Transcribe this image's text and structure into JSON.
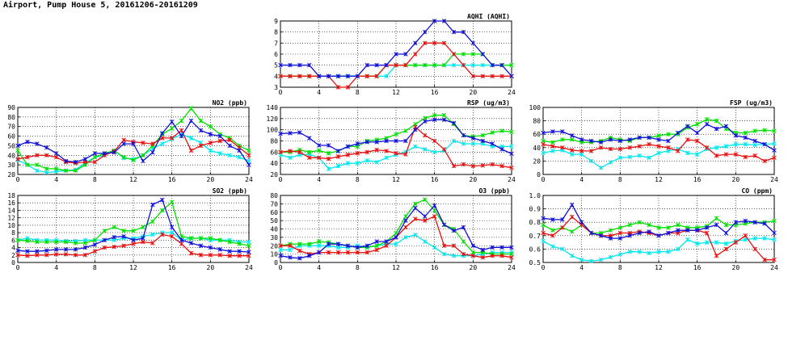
{
  "page_title": "Airport, Pump House 5, 20161206-20161209",
  "series_colors": {
    "series_1": "#00e8f0",
    "series_2": "#00e000",
    "series_3": "#e81010",
    "series_4": "#1010d8"
  },
  "chart_data": [
    {
      "id": "aqhi",
      "type": "line",
      "title": "AQHI (AQHI)",
      "xlim": [
        0,
        24
      ],
      "ylim": [
        3,
        9
      ],
      "xticks": [
        "0",
        "4",
        "8",
        "12",
        "16",
        "20",
        "24"
      ],
      "yticks": [
        "3",
        "4",
        "5",
        "6",
        "7",
        "8",
        "9"
      ],
      "grid": true,
      "series": [
        {
          "color": "#00e8f0",
          "values": [
            4,
            4,
            4,
            4,
            4,
            4,
            4,
            4,
            4,
            4,
            4,
            4,
            5,
            5,
            5,
            5,
            5,
            5,
            5,
            5,
            5,
            5,
            5,
            5,
            5
          ]
        },
        {
          "color": "#00e000",
          "values": [
            4,
            4,
            4,
            4,
            4,
            4,
            4,
            4,
            4,
            4,
            4,
            5,
            5,
            5,
            5,
            5,
            5,
            5,
            6,
            6,
            6,
            6,
            5,
            5,
            5
          ]
        },
        {
          "color": "#e81010",
          "values": [
            4,
            4,
            4,
            4,
            4,
            4,
            3,
            3,
            4,
            4,
            4,
            5,
            5,
            5,
            6,
            7,
            7,
            7,
            6,
            5,
            4,
            4,
            4,
            4,
            4
          ]
        },
        {
          "color": "#1010d8",
          "values": [
            5,
            5,
            5,
            5,
            4,
            4,
            4,
            4,
            4,
            5,
            5,
            5,
            6,
            6,
            7,
            8,
            9,
            9,
            8,
            8,
            7,
            6,
            5,
            5,
            4
          ]
        }
      ]
    },
    {
      "id": "no2",
      "type": "line",
      "title": "NO2 (ppb)",
      "xlim": [
        0,
        24
      ],
      "ylim": [
        20,
        90
      ],
      "xticks": [
        "0",
        "4",
        "8",
        "12",
        "16",
        "20",
        "24"
      ],
      "yticks": [
        "20",
        "30",
        "40",
        "50",
        "60",
        "70",
        "80",
        "90"
      ],
      "grid": true,
      "series": [
        {
          "color": "#00e8f0",
          "values": [
            35,
            30,
            24,
            22,
            23,
            24,
            25,
            32,
            38,
            40,
            45,
            37,
            36,
            40,
            47,
            52,
            57,
            62,
            58,
            53,
            45,
            42,
            40,
            38,
            34
          ]
        },
        {
          "color": "#00e000",
          "values": [
            45,
            30,
            30,
            26,
            26,
            24,
            24,
            30,
            38,
            42,
            45,
            38,
            35,
            40,
            50,
            62,
            68,
            76,
            89,
            76,
            70,
            62,
            58,
            50,
            45
          ]
        },
        {
          "color": "#e81010",
          "values": [
            36,
            38,
            40,
            40,
            38,
            33,
            32,
            33,
            33,
            40,
            44,
            56,
            54,
            53,
            52,
            58,
            58,
            66,
            45,
            50,
            53,
            55,
            56,
            48,
            40
          ]
        },
        {
          "color": "#1010d8",
          "values": [
            50,
            54,
            52,
            48,
            42,
            34,
            33,
            36,
            42,
            42,
            43,
            52,
            52,
            34,
            43,
            63,
            75,
            60,
            76,
            66,
            62,
            60,
            50,
            45,
            30
          ]
        }
      ]
    },
    {
      "id": "rsp",
      "type": "line",
      "title": "RSP (ug/m3)",
      "xlim": [
        0,
        24
      ],
      "ylim": [
        20,
        140
      ],
      "xticks": [
        "0",
        "4",
        "8",
        "12",
        "16",
        "20",
        "24"
      ],
      "yticks": [
        "20",
        "40",
        "60",
        "80",
        "100",
        "120",
        "140"
      ],
      "grid": true,
      "series": [
        {
          "color": "#00e8f0",
          "values": [
            55,
            50,
            55,
            56,
            50,
            30,
            35,
            40,
            40,
            45,
            42,
            50,
            55,
            60,
            70,
            65,
            60,
            62,
            80,
            75,
            75,
            75,
            70,
            70,
            70
          ]
        },
        {
          "color": "#00e000",
          "values": [
            60,
            60,
            64,
            60,
            63,
            58,
            62,
            70,
            70,
            80,
            82,
            85,
            92,
            98,
            110,
            121,
            126,
            126,
            110,
            90,
            88,
            90,
            95,
            98,
            96
          ]
        },
        {
          "color": "#e81010",
          "values": [
            60,
            62,
            60,
            50,
            50,
            48,
            52,
            55,
            58,
            60,
            64,
            62,
            58,
            56,
            105,
            90,
            80,
            65,
            35,
            38,
            35,
            36,
            38,
            35,
            32
          ]
        },
        {
          "color": "#1010d8",
          "values": [
            93,
            94,
            95,
            85,
            72,
            72,
            62,
            70,
            75,
            78,
            78,
            80,
            80,
            80,
            100,
            115,
            118,
            118,
            112,
            90,
            85,
            80,
            75,
            65,
            57
          ]
        }
      ]
    },
    {
      "id": "fsp",
      "type": "line",
      "title": "FSP (ug/m3)",
      "xlim": [
        0,
        24
      ],
      "ylim": [
        0,
        100
      ],
      "xticks": [
        "0",
        "4",
        "8",
        "12",
        "16",
        "20",
        "24"
      ],
      "yticks": [
        "0",
        "20",
        "40",
        "60",
        "80",
        "100"
      ],
      "grid": true,
      "series": [
        {
          "color": "#00e8f0",
          "values": [
            32,
            35,
            36,
            30,
            30,
            20,
            10,
            18,
            25,
            26,
            28,
            25,
            32,
            35,
            38,
            32,
            30,
            38,
            40,
            42,
            45,
            45,
            44,
            45,
            46
          ]
        },
        {
          "color": "#00e000",
          "values": [
            50,
            48,
            52,
            52,
            48,
            48,
            50,
            55,
            52,
            50,
            55,
            55,
            58,
            60,
            60,
            70,
            75,
            82,
            80,
            68,
            62,
            62,
            65,
            66,
            65
          ]
        },
        {
          "color": "#e81010",
          "values": [
            45,
            42,
            40,
            36,
            35,
            35,
            40,
            38,
            38,
            40,
            42,
            45,
            42,
            40,
            35,
            52,
            50,
            40,
            28,
            30,
            30,
            26,
            28,
            20,
            25
          ]
        },
        {
          "color": "#1010d8",
          "values": [
            62,
            64,
            64,
            58,
            52,
            50,
            48,
            52,
            50,
            52,
            55,
            55,
            52,
            50,
            62,
            72,
            62,
            75,
            68,
            72,
            58,
            55,
            50,
            45,
            36
          ]
        }
      ]
    },
    {
      "id": "so2",
      "type": "line",
      "title": "SO2 (ppb)",
      "xlim": [
        0,
        24
      ],
      "ylim": [
        0,
        18
      ],
      "xticks": [
        "0",
        "4",
        "8",
        "12",
        "16",
        "20",
        "24"
      ],
      "yticks": [
        "0",
        "2",
        "4",
        "6",
        "8",
        "10",
        "12",
        "14",
        "16",
        "18"
      ],
      "grid": true,
      "series": [
        {
          "color": "#00e8f0",
          "values": [
            6,
            6.5,
            6,
            6,
            6,
            5.8,
            5.8,
            6,
            6,
            6,
            6,
            6.5,
            6.5,
            7,
            7.5,
            8,
            8,
            6,
            6.5,
            6.5,
            6,
            6,
            6,
            5.5,
            5.5
          ]
        },
        {
          "color": "#00e000",
          "values": [
            6,
            5.8,
            5.5,
            5.5,
            5.5,
            5.5,
            5.2,
            5.2,
            6,
            8.5,
            9.5,
            8.5,
            8.5,
            9.5,
            11,
            14,
            16.2,
            7,
            6.5,
            6.5,
            6.5,
            6,
            5.5,
            5,
            4.5
          ]
        },
        {
          "color": "#e81010",
          "values": [
            2,
            1.8,
            2,
            2,
            2.2,
            2.2,
            2,
            2,
            3,
            4,
            4.2,
            4.5,
            5,
            5.5,
            5.2,
            7.5,
            7,
            5,
            2.5,
            2,
            2,
            2,
            1.8,
            1.8,
            1.8
          ]
        },
        {
          "color": "#1010d8",
          "values": [
            3.2,
            3,
            3,
            3.2,
            3.5,
            3.5,
            3.5,
            4,
            4.8,
            6,
            6.8,
            7,
            6,
            6.5,
            15.5,
            16.8,
            9.5,
            6,
            5.2,
            4.5,
            4,
            3.5,
            3,
            3,
            2.8
          ]
        }
      ]
    },
    {
      "id": "o3",
      "type": "line",
      "title": "O3 (ppb)",
      "xlim": [
        0,
        24
      ],
      "ylim": [
        0,
        80
      ],
      "xticks": [
        "0",
        "4",
        "8",
        "12",
        "16",
        "20",
        "24"
      ],
      "yticks": [
        "0",
        "10",
        "20",
        "30",
        "40",
        "50",
        "60",
        "70",
        "80"
      ],
      "grid": true,
      "series": [
        {
          "color": "#00e8f0",
          "values": [
            15,
            15,
            20,
            20,
            20,
            20,
            18,
            18,
            20,
            18,
            20,
            22,
            22,
            30,
            33,
            25,
            18,
            10,
            8,
            8,
            8,
            10,
            12,
            12,
            12
          ]
        },
        {
          "color": "#00e000",
          "values": [
            20,
            22,
            22,
            22,
            25,
            24,
            22,
            20,
            18,
            18,
            20,
            25,
            35,
            55,
            70,
            75,
            62,
            45,
            40,
            25,
            12,
            12,
            10,
            10,
            10
          ]
        },
        {
          "color": "#e81010",
          "values": [
            20,
            20,
            14,
            10,
            12,
            12,
            12,
            12,
            12,
            12,
            15,
            20,
            30,
            42,
            52,
            50,
            55,
            20,
            20,
            10,
            8,
            6,
            8,
            8,
            6
          ]
        },
        {
          "color": "#1010d8",
          "values": [
            8,
            6,
            5,
            8,
            12,
            22,
            22,
            20,
            18,
            20,
            25,
            25,
            30,
            50,
            65,
            55,
            68,
            45,
            38,
            42,
            20,
            15,
            18,
            18,
            18
          ]
        }
      ]
    },
    {
      "id": "co",
      "type": "line",
      "title": "CO (ppm)",
      "xlim": [
        0,
        24
      ],
      "ylim": [
        0.5,
        1.0
      ],
      "xticks": [
        "0",
        "4",
        "8",
        "12",
        "16",
        "20",
        "24"
      ],
      "yticks": [
        "0.5",
        "0.6",
        "0.7",
        "0.8",
        "0.9",
        "1.0"
      ],
      "grid": true,
      "series": [
        {
          "color": "#00e8f0",
          "values": [
            0.66,
            0.62,
            0.6,
            0.55,
            0.52,
            0.51,
            0.52,
            0.54,
            0.56,
            0.58,
            0.58,
            0.57,
            0.58,
            0.58,
            0.6,
            0.67,
            0.64,
            0.65,
            0.65,
            0.64,
            0.66,
            0.67,
            0.68,
            0.68,
            0.67
          ]
        },
        {
          "color": "#00e000",
          "values": [
            0.78,
            0.74,
            0.76,
            0.73,
            0.78,
            0.72,
            0.72,
            0.74,
            0.76,
            0.78,
            0.8,
            0.78,
            0.76,
            0.76,
            0.78,
            0.76,
            0.76,
            0.77,
            0.83,
            0.78,
            0.78,
            0.79,
            0.8,
            0.8,
            0.81
          ]
        },
        {
          "color": "#e81010",
          "values": [
            0.72,
            0.7,
            0.76,
            0.84,
            0.78,
            0.72,
            0.7,
            0.7,
            0.72,
            0.72,
            0.73,
            0.72,
            0.7,
            0.72,
            0.72,
            0.74,
            0.74,
            0.72,
            0.55,
            0.6,
            0.65,
            0.7,
            0.6,
            0.52,
            0.52
          ]
        },
        {
          "color": "#1010d8",
          "values": [
            0.83,
            0.82,
            0.82,
            0.93,
            0.8,
            0.72,
            0.7,
            0.68,
            0.68,
            0.7,
            0.72,
            0.73,
            0.7,
            0.72,
            0.74,
            0.74,
            0.74,
            0.76,
            0.78,
            0.72,
            0.8,
            0.81,
            0.8,
            0.79,
            0.72
          ]
        }
      ]
    }
  ]
}
